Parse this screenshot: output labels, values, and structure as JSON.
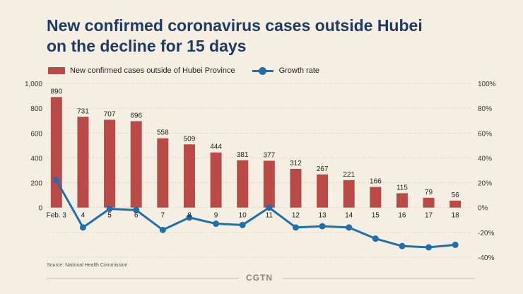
{
  "header": {
    "title_line1": "New confirmed coronavirus cases outside Hubei",
    "title_line2": "on the decline for 15 days"
  },
  "legend": {
    "bar_label": "New confirmed cases outside of Hubei Province",
    "line_label": "Growth rate"
  },
  "footer": {
    "source": "Source: National Health Commission",
    "brand": "CGTN"
  },
  "colors": {
    "background": "#f4efe2",
    "bar": "#b94a48",
    "line": "#1f6fad",
    "title": "#1f3a63"
  },
  "chart_data": {
    "type": "bar",
    "categories": [
      "Feb. 3",
      "4",
      "5",
      "6",
      "7",
      "8",
      "9",
      "10",
      "11",
      "12",
      "13",
      "14",
      "15",
      "16",
      "17",
      "18"
    ],
    "series": [
      {
        "name": "New confirmed cases outside of Hubei Province",
        "type": "bar",
        "axis": "left",
        "values": [
          890,
          731,
          707,
          696,
          558,
          509,
          444,
          381,
          377,
          312,
          267,
          221,
          166,
          115,
          79,
          56
        ]
      },
      {
        "name": "Growth rate",
        "type": "line",
        "axis": "right",
        "values": [
          22,
          -16,
          -1,
          -2,
          -18,
          -8,
          -13,
          -14,
          0,
          -16,
          -15,
          -16,
          -25,
          -31,
          -32,
          -30
        ]
      }
    ],
    "left_axis": {
      "ticks": [
        0,
        200,
        400,
        600,
        800,
        1000
      ],
      "tick_labels": [
        "0",
        "200",
        "400",
        "600",
        "800",
        "1,000"
      ],
      "range": [
        -400,
        1000
      ]
    },
    "right_axis": {
      "ticks": [
        -40,
        -20,
        0,
        20,
        40,
        60,
        80,
        100
      ],
      "tick_labels": [
        "-40%",
        "-20%",
        "0%",
        "20%",
        "40%",
        "60%",
        "80%",
        "100%"
      ],
      "range": [
        -40,
        100
      ]
    },
    "grid": true,
    "legend_position": "top-left"
  }
}
